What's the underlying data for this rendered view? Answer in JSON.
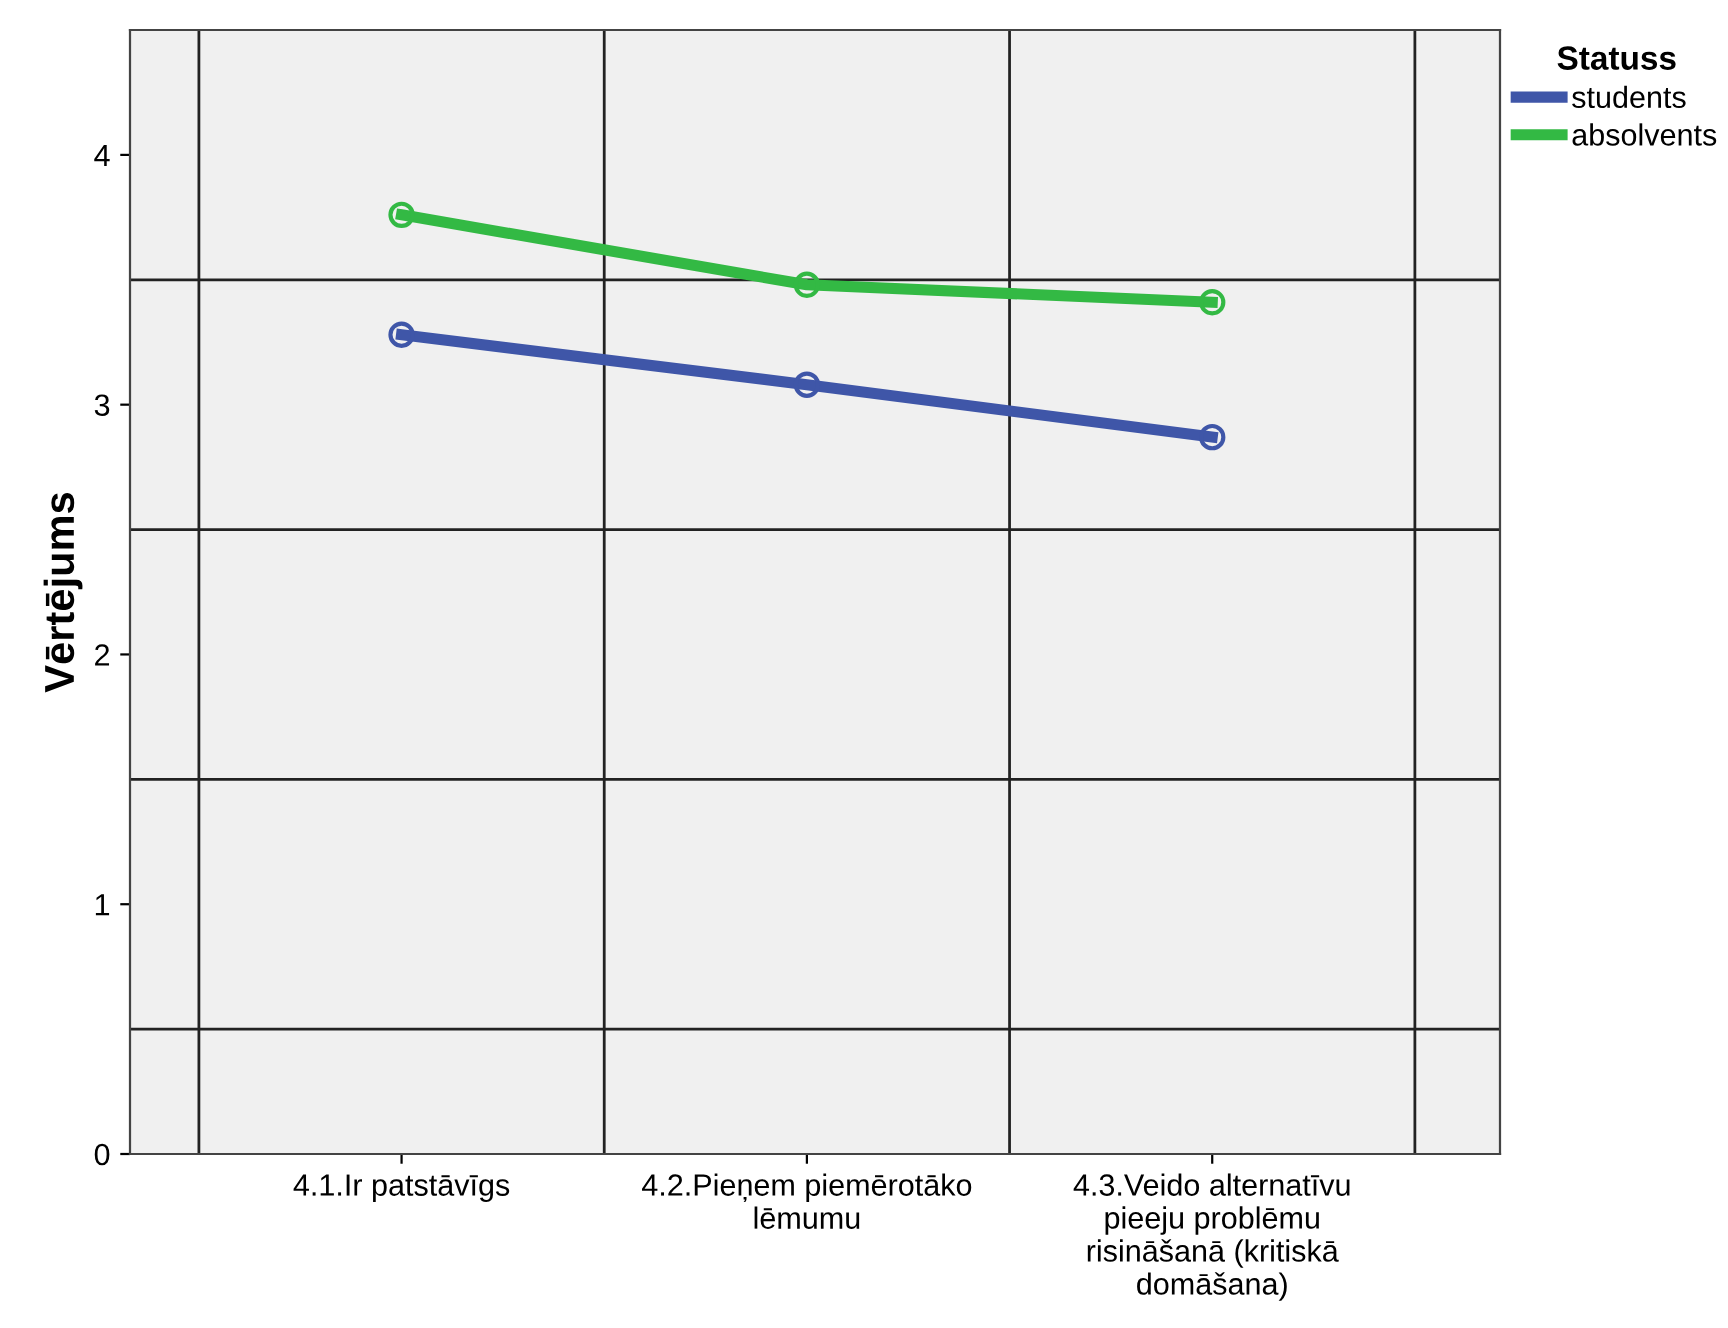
{
  "chart_data": {
    "type": "line",
    "ylabel": "Vērtējums",
    "legend_title": "Statuss",
    "categories": [
      "4.1.Ir patstāvīgs",
      "4.2.Pieņem piemērotāko\nlēmumu",
      "4.3.Veido alternatīvu\npieeju problēmu\nrisināšanā (kritiskā\ndomāšana)"
    ],
    "series": [
      {
        "name": "students",
        "color": "#3f56a8",
        "values": [
          3.28,
          3.08,
          2.87
        ]
      },
      {
        "name": "absolvents",
        "color": "#33b944",
        "values": [
          3.76,
          3.48,
          3.41
        ]
      }
    ],
    "ylim": [
      0,
      4.5
    ],
    "yticks": [
      0,
      1,
      2,
      3,
      4
    ],
    "grid": true,
    "legend": "top right",
    "marker": "circle",
    "line_style": "solid"
  }
}
